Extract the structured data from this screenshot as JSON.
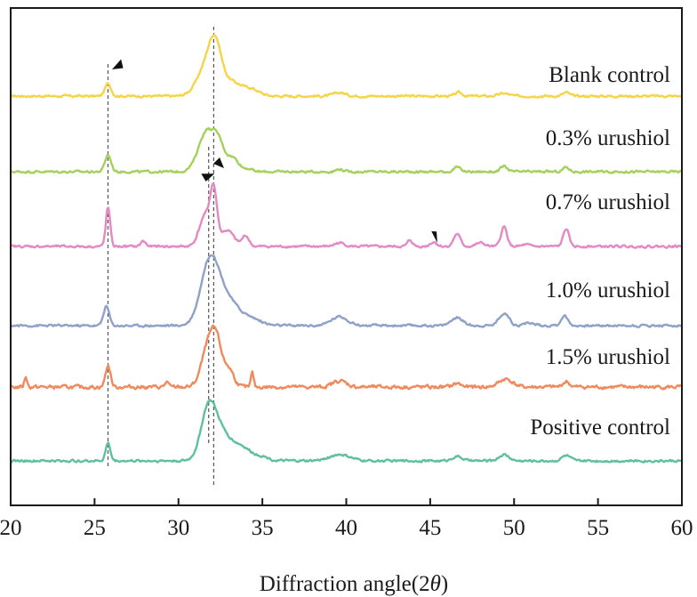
{
  "chart_data": {
    "type": "line",
    "title": "",
    "xlabel": "Diffraction angle(2θ)",
    "xlabel_text": "Diffraction angle(2",
    "xlabel_symbol": "θ",
    "xlabel_close": ")",
    "ylabel": "",
    "xlim": [
      20,
      60
    ],
    "x_ticks": [
      20,
      25,
      30,
      35,
      40,
      45,
      50,
      55,
      60
    ],
    "x_tick_labels": [
      "20",
      "25",
      "30",
      "35",
      "40",
      "45",
      "50",
      "55",
      "60"
    ],
    "y_ticks": [],
    "grid": false,
    "legend": "inline labels at right of each curve",
    "stacked_offset": true,
    "reference_lines_2theta": [
      25.8,
      31.8,
      32.1
    ],
    "arrow_markers": [
      {
        "series": "Blank control",
        "x": 25.9,
        "direction": "left-down"
      },
      {
        "series": "0.7% urushiol",
        "x": 31.6,
        "direction": "right-up"
      },
      {
        "series": "0.7% urushiol",
        "x": 32.6,
        "direction": "left-up"
      },
      {
        "series": "0.7% urushiol",
        "x": 45.1,
        "direction": "right-down"
      }
    ],
    "series": [
      {
        "name": "Blank control",
        "color": "#f5d547",
        "label": "Blank control",
        "peaks": [
          [
            25.8,
            14,
            0.18
          ],
          [
            31.8,
            38,
            0.6
          ],
          [
            32.2,
            36,
            0.35
          ],
          [
            33.2,
            14,
            0.5
          ],
          [
            34.3,
            8,
            0.5
          ],
          [
            39.6,
            4,
            0.35
          ],
          [
            46.7,
            4,
            0.2
          ],
          [
            49.4,
            3,
            0.3
          ],
          [
            53.1,
            4,
            0.2
          ]
        ]
      },
      {
        "name": "0.3% urushiol",
        "color": "#a4d15a",
        "label": "0.3% urushiol",
        "peaks": [
          [
            25.8,
            19,
            0.18
          ],
          [
            31.7,
            46,
            0.5
          ],
          [
            32.4,
            22,
            0.3
          ],
          [
            33.2,
            16,
            0.4
          ],
          [
            34.2,
            3,
            0.2
          ],
          [
            39.6,
            3,
            0.2
          ],
          [
            46.6,
            5,
            0.2
          ],
          [
            49.4,
            6,
            0.2
          ],
          [
            53.1,
            5,
            0.18
          ]
        ]
      },
      {
        "name": "0.7% urushiol",
        "color": "#e389c3",
        "label": "0.7% urushiol",
        "peaks": [
          [
            25.8,
            44,
            0.13
          ],
          [
            27.9,
            6,
            0.15
          ],
          [
            31.6,
            35,
            0.35
          ],
          [
            32.1,
            55,
            0.2
          ],
          [
            32.9,
            18,
            0.4
          ],
          [
            34.0,
            12,
            0.2
          ],
          [
            39.6,
            4,
            0.3
          ],
          [
            43.8,
            7,
            0.15
          ],
          [
            45.2,
            5,
            0.2
          ],
          [
            46.6,
            14,
            0.2
          ],
          [
            48.0,
            4,
            0.25
          ],
          [
            49.4,
            22,
            0.18
          ],
          [
            50.7,
            2,
            0.2
          ],
          [
            53.1,
            20,
            0.17
          ]
        ]
      },
      {
        "name": "1.0% urushiol",
        "color": "#8fa1c8",
        "label": "1.0% urushiol",
        "peaks": [
          [
            25.7,
            22,
            0.17
          ],
          [
            31.9,
            75,
            0.55
          ],
          [
            33.0,
            25,
            0.6
          ],
          [
            34.3,
            8,
            0.6
          ],
          [
            39.6,
            10,
            0.5
          ],
          [
            46.6,
            9,
            0.35
          ],
          [
            49.4,
            14,
            0.3
          ],
          [
            50.9,
            3,
            0.3
          ],
          [
            53.0,
            11,
            0.2
          ]
        ]
      },
      {
        "name": "1.5% urushiol",
        "color": "#f08a5d",
        "label": "1.5% urushiol",
        "peaks": [
          [
            20.9,
            12,
            0.08
          ],
          [
            25.8,
            24,
            0.15
          ],
          [
            29.3,
            6,
            0.1
          ],
          [
            31.8,
            48,
            0.4
          ],
          [
            32.3,
            38,
            0.3
          ],
          [
            33.0,
            20,
            0.3
          ],
          [
            34.4,
            16,
            0.08
          ],
          [
            39.6,
            7,
            0.4
          ],
          [
            46.6,
            4,
            0.25
          ],
          [
            49.5,
            9,
            0.4
          ],
          [
            53.1,
            6,
            0.2
          ]
        ]
      },
      {
        "name": "Positive control",
        "color": "#5fbf9f",
        "label": "Positive control",
        "peaks": [
          [
            25.8,
            20,
            0.14
          ],
          [
            31.8,
            60,
            0.45
          ],
          [
            32.6,
            25,
            0.5
          ],
          [
            33.7,
            16,
            0.6
          ],
          [
            35.0,
            4,
            0.4
          ],
          [
            39.6,
            7,
            0.6
          ],
          [
            46.6,
            5,
            0.3
          ],
          [
            49.4,
            7,
            0.3
          ],
          [
            53.1,
            6,
            0.25
          ]
        ]
      }
    ]
  }
}
